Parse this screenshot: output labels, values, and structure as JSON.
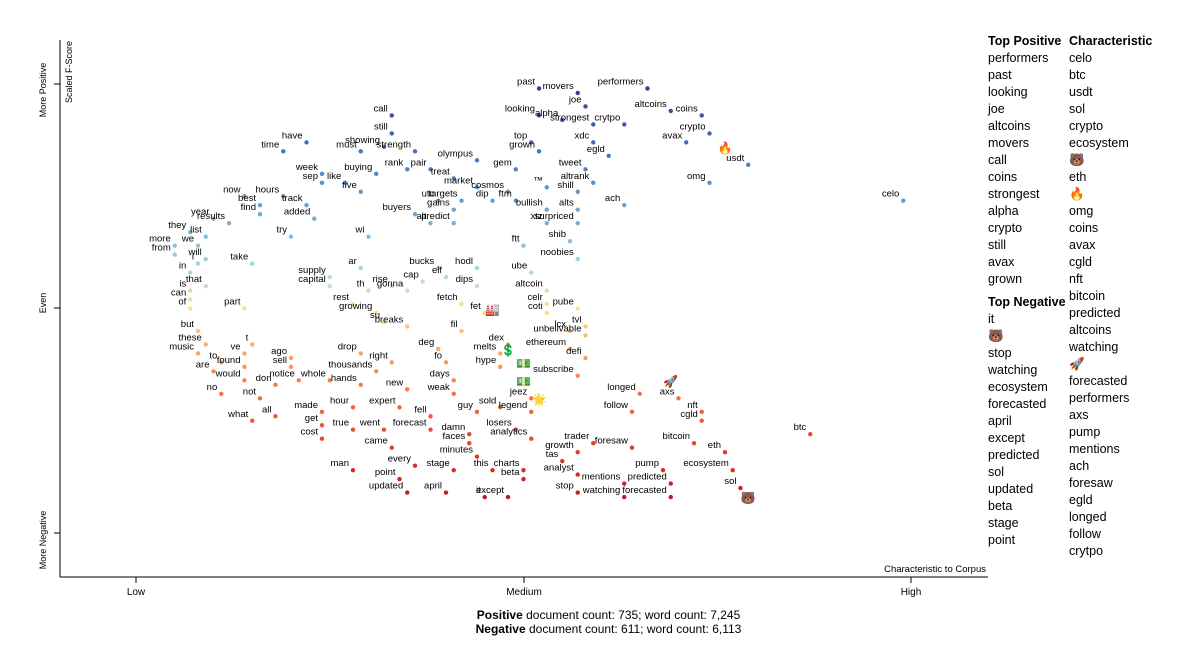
{
  "chart_data": {
    "type": "scatter",
    "title": "",
    "xlabel": "Characteristic to Corpus",
    "ylabel": "Scaled F-Score",
    "x_ticks": [
      "Low",
      "Medium",
      "High"
    ],
    "y_ticks": [
      "More Negative",
      "Even",
      "More Positive"
    ],
    "xlim": [
      0,
      1
    ],
    "ylim": [
      0,
      1
    ],
    "color_scale": {
      "positive": "#313695",
      "neutral": "#fee08b",
      "negative": "#a50026"
    },
    "labeled_points": [
      {
        "term": "past",
        "x": 0.52,
        "y": 0.99
      },
      {
        "term": "movers",
        "x": 0.57,
        "y": 0.98
      },
      {
        "term": "performers",
        "x": 0.66,
        "y": 0.99
      },
      {
        "term": "call",
        "x": 0.33,
        "y": 0.93
      },
      {
        "term": "joe",
        "x": 0.58,
        "y": 0.95
      },
      {
        "term": "looking",
        "x": 0.52,
        "y": 0.93
      },
      {
        "term": "alpha",
        "x": 0.55,
        "y": 0.92
      },
      {
        "term": "strongest",
        "x": 0.59,
        "y": 0.91
      },
      {
        "term": "altcoins",
        "x": 0.69,
        "y": 0.94
      },
      {
        "term": "coins",
        "x": 0.73,
        "y": 0.93
      },
      {
        "term": "crytpo",
        "x": 0.63,
        "y": 0.91
      },
      {
        "term": "still",
        "x": 0.33,
        "y": 0.89
      },
      {
        "term": "top",
        "x": 0.51,
        "y": 0.87
      },
      {
        "term": "xdc",
        "x": 0.59,
        "y": 0.87
      },
      {
        "term": "crypto",
        "x": 0.74,
        "y": 0.89
      },
      {
        "term": "avax",
        "x": 0.71,
        "y": 0.87
      },
      {
        "term": "have",
        "x": 0.22,
        "y": 0.87
      },
      {
        "term": "must",
        "x": 0.29,
        "y": 0.85
      },
      {
        "term": "showing",
        "x": 0.32,
        "y": 0.86
      },
      {
        "term": "strength",
        "x": 0.36,
        "y": 0.85
      },
      {
        "term": "time",
        "x": 0.19,
        "y": 0.85
      },
      {
        "term": "grown",
        "x": 0.52,
        "y": 0.85
      },
      {
        "term": "egld",
        "x": 0.61,
        "y": 0.84
      },
      {
        "term": "olympus",
        "x": 0.44,
        "y": 0.83
      },
      {
        "term": "rank",
        "x": 0.35,
        "y": 0.81
      },
      {
        "term": "pair",
        "x": 0.38,
        "y": 0.81
      },
      {
        "term": "gem",
        "x": 0.49,
        "y": 0.81
      },
      {
        "term": "tweet",
        "x": 0.58,
        "y": 0.81
      },
      {
        "term": "week",
        "x": 0.24,
        "y": 0.8
      },
      {
        "term": "buying",
        "x": 0.31,
        "y": 0.8
      },
      {
        "term": "treat",
        "x": 0.41,
        "y": 0.79
      },
      {
        "term": "altrank",
        "x": 0.59,
        "y": 0.78
      },
      {
        "term": "omg",
        "x": 0.74,
        "y": 0.78
      },
      {
        "term": "usdt",
        "x": 0.79,
        "y": 0.82
      },
      {
        "term": "sep",
        "x": 0.24,
        "y": 0.78
      },
      {
        "term": "like",
        "x": 0.27,
        "y": 0.78
      },
      {
        "term": "market",
        "x": 0.44,
        "y": 0.77
      },
      {
        "term": "five",
        "x": 0.29,
        "y": 0.76
      },
      {
        "term": "™",
        "x": 0.53,
        "y": 0.77
      },
      {
        "term": "shill",
        "x": 0.57,
        "y": 0.76
      },
      {
        "term": "cosmos",
        "x": 0.48,
        "y": 0.76
      },
      {
        "term": "now",
        "x": 0.14,
        "y": 0.75
      },
      {
        "term": "hours",
        "x": 0.19,
        "y": 0.75
      },
      {
        "term": "utc",
        "x": 0.39,
        "y": 0.74
      },
      {
        "term": "targets",
        "x": 0.42,
        "y": 0.74
      },
      {
        "term": "dip",
        "x": 0.46,
        "y": 0.74
      },
      {
        "term": "ftm",
        "x": 0.49,
        "y": 0.74
      },
      {
        "term": "ach",
        "x": 0.63,
        "y": 0.73
      },
      {
        "term": "best",
        "x": 0.16,
        "y": 0.73
      },
      {
        "term": "track",
        "x": 0.22,
        "y": 0.73
      },
      {
        "term": "gains",
        "x": 0.41,
        "y": 0.72
      },
      {
        "term": "bullish",
        "x": 0.53,
        "y": 0.72
      },
      {
        "term": "alts",
        "x": 0.57,
        "y": 0.72
      },
      {
        "term": "find",
        "x": 0.16,
        "y": 0.71
      },
      {
        "term": "year",
        "x": 0.1,
        "y": 0.7
      },
      {
        "term": "results",
        "x": 0.12,
        "y": 0.69
      },
      {
        "term": "added",
        "x": 0.23,
        "y": 0.7
      },
      {
        "term": "buyers",
        "x": 0.36,
        "y": 0.71
      },
      {
        "term": "predict",
        "x": 0.41,
        "y": 0.69
      },
      {
        "term": "xtz",
        "x": 0.53,
        "y": 0.69
      },
      {
        "term": "surpriced",
        "x": 0.57,
        "y": 0.69
      },
      {
        "term": "alt",
        "x": 0.38,
        "y": 0.69
      },
      {
        "term": "they",
        "x": 0.07,
        "y": 0.67
      },
      {
        "term": "list",
        "x": 0.09,
        "y": 0.66
      },
      {
        "term": "try",
        "x": 0.2,
        "y": 0.66
      },
      {
        "term": "wi",
        "x": 0.3,
        "y": 0.66
      },
      {
        "term": "shib",
        "x": 0.56,
        "y": 0.65
      },
      {
        "term": "more",
        "x": 0.05,
        "y": 0.64
      },
      {
        "term": "we",
        "x": 0.08,
        "y": 0.64
      },
      {
        "term": "ftt",
        "x": 0.5,
        "y": 0.64
      },
      {
        "term": "from",
        "x": 0.05,
        "y": 0.62
      },
      {
        "term": "will",
        "x": 0.09,
        "y": 0.61
      },
      {
        "term": "noobies",
        "x": 0.57,
        "y": 0.61
      },
      {
        "term": "take",
        "x": 0.15,
        "y": 0.6
      },
      {
        "term": "i",
        "x": 0.08,
        "y": 0.6
      },
      {
        "term": "ar",
        "x": 0.29,
        "y": 0.59
      },
      {
        "term": "bucks",
        "x": 0.39,
        "y": 0.59
      },
      {
        "term": "hodl",
        "x": 0.44,
        "y": 0.59
      },
      {
        "term": "ube",
        "x": 0.51,
        "y": 0.58
      },
      {
        "term": "in",
        "x": 0.07,
        "y": 0.58
      },
      {
        "term": "elf",
        "x": 0.4,
        "y": 0.57
      },
      {
        "term": "supply",
        "x": 0.25,
        "y": 0.57
      },
      {
        "term": "that",
        "x": 0.09,
        "y": 0.55
      },
      {
        "term": "cap",
        "x": 0.37,
        "y": 0.56
      },
      {
        "term": "dips",
        "x": 0.44,
        "y": 0.55
      },
      {
        "term": "capital",
        "x": 0.25,
        "y": 0.55
      },
      {
        "term": "rise",
        "x": 0.33,
        "y": 0.55
      },
      {
        "term": "is",
        "x": 0.07,
        "y": 0.54
      },
      {
        "term": "gonna",
        "x": 0.35,
        "y": 0.54
      },
      {
        "term": "altcoin",
        "x": 0.53,
        "y": 0.54
      },
      {
        "term": "th",
        "x": 0.3,
        "y": 0.54
      },
      {
        "term": "can",
        "x": 0.07,
        "y": 0.52
      },
      {
        "term": "rest",
        "x": 0.28,
        "y": 0.51
      },
      {
        "term": "celr",
        "x": 0.53,
        "y": 0.51
      },
      {
        "term": "fetch",
        "x": 0.42,
        "y": 0.51
      },
      {
        "term": "of",
        "x": 0.07,
        "y": 0.5
      },
      {
        "term": "part",
        "x": 0.14,
        "y": 0.5
      },
      {
        "term": "growing",
        "x": 0.31,
        "y": 0.49
      },
      {
        "term": "fet",
        "x": 0.45,
        "y": 0.49
      },
      {
        "term": "coti",
        "x": 0.53,
        "y": 0.49
      },
      {
        "term": "pube",
        "x": 0.57,
        "y": 0.5
      },
      {
        "term": "su",
        "x": 0.32,
        "y": 0.47
      },
      {
        "term": "tvl",
        "x": 0.58,
        "y": 0.46
      },
      {
        "term": "breaks",
        "x": 0.35,
        "y": 0.46
      },
      {
        "term": "but",
        "x": 0.08,
        "y": 0.45
      },
      {
        "term": "lcx",
        "x": 0.56,
        "y": 0.45
      },
      {
        "term": "fil",
        "x": 0.42,
        "y": 0.45
      },
      {
        "term": "unbelivable",
        "x": 0.58,
        "y": 0.44
      },
      {
        "term": "these",
        "x": 0.09,
        "y": 0.42
      },
      {
        "term": "t",
        "x": 0.15,
        "y": 0.42
      },
      {
        "term": "dex",
        "x": 0.48,
        "y": 0.42
      },
      {
        "term": "ethereum",
        "x": 0.56,
        "y": 0.41
      },
      {
        "term": "deg",
        "x": 0.39,
        "y": 0.41
      },
      {
        "term": "music",
        "x": 0.08,
        "y": 0.4
      },
      {
        "term": "ve",
        "x": 0.14,
        "y": 0.4
      },
      {
        "term": "drop",
        "x": 0.29,
        "y": 0.4
      },
      {
        "term": "melts",
        "x": 0.47,
        "y": 0.4
      },
      {
        "term": "defi",
        "x": 0.58,
        "y": 0.39
      },
      {
        "term": "ago",
        "x": 0.2,
        "y": 0.39
      },
      {
        "term": "to",
        "x": 0.11,
        "y": 0.38
      },
      {
        "term": "found",
        "x": 0.14,
        "y": 0.37
      },
      {
        "term": "right",
        "x": 0.33,
        "y": 0.38
      },
      {
        "term": "fo",
        "x": 0.4,
        "y": 0.38
      },
      {
        "term": "sell",
        "x": 0.2,
        "y": 0.37
      },
      {
        "term": "are",
        "x": 0.1,
        "y": 0.36
      },
      {
        "term": "thousands",
        "x": 0.31,
        "y": 0.36
      },
      {
        "term": "hype",
        "x": 0.47,
        "y": 0.37
      },
      {
        "term": "subscribe",
        "x": 0.57,
        "y": 0.35
      },
      {
        "term": "would",
        "x": 0.14,
        "y": 0.34
      },
      {
        "term": "notice",
        "x": 0.21,
        "y": 0.34
      },
      {
        "term": "whole",
        "x": 0.25,
        "y": 0.34
      },
      {
        "term": "days",
        "x": 0.41,
        "y": 0.34
      },
      {
        "term": "don",
        "x": 0.18,
        "y": 0.33
      },
      {
        "term": "hands",
        "x": 0.29,
        "y": 0.33
      },
      {
        "term": "new",
        "x": 0.35,
        "y": 0.32
      },
      {
        "term": "weak",
        "x": 0.41,
        "y": 0.31
      },
      {
        "term": "longed",
        "x": 0.65,
        "y": 0.31
      },
      {
        "term": "axs",
        "x": 0.7,
        "y": 0.3
      },
      {
        "term": "no",
        "x": 0.11,
        "y": 0.31
      },
      {
        "term": "not",
        "x": 0.16,
        "y": 0.3
      },
      {
        "term": "jeez",
        "x": 0.51,
        "y": 0.3
      },
      {
        "term": "hour",
        "x": 0.28,
        "y": 0.28
      },
      {
        "term": "expert",
        "x": 0.34,
        "y": 0.28
      },
      {
        "term": "sold",
        "x": 0.47,
        "y": 0.28
      },
      {
        "term": "legend",
        "x": 0.51,
        "y": 0.27
      },
      {
        "term": "follow",
        "x": 0.64,
        "y": 0.27
      },
      {
        "term": "nft",
        "x": 0.73,
        "y": 0.27
      },
      {
        "term": "made",
        "x": 0.24,
        "y": 0.27
      },
      {
        "term": "fell",
        "x": 0.38,
        "y": 0.26
      },
      {
        "term": "guy",
        "x": 0.44,
        "y": 0.27
      },
      {
        "term": "all",
        "x": 0.18,
        "y": 0.26
      },
      {
        "term": "what",
        "x": 0.15,
        "y": 0.25
      },
      {
        "term": "cgld",
        "x": 0.73,
        "y": 0.25
      },
      {
        "term": "get",
        "x": 0.24,
        "y": 0.24
      },
      {
        "term": "forecast",
        "x": 0.38,
        "y": 0.23
      },
      {
        "term": "losers",
        "x": 0.49,
        "y": 0.23
      },
      {
        "term": "true",
        "x": 0.28,
        "y": 0.23
      },
      {
        "term": "went",
        "x": 0.32,
        "y": 0.23
      },
      {
        "term": "damn",
        "x": 0.43,
        "y": 0.22
      },
      {
        "term": "cost",
        "x": 0.24,
        "y": 0.21
      },
      {
        "term": "analytics",
        "x": 0.51,
        "y": 0.21
      },
      {
        "term": "faces",
        "x": 0.43,
        "y": 0.2
      },
      {
        "term": "trader",
        "x": 0.59,
        "y": 0.2
      },
      {
        "term": "bitcoin",
        "x": 0.72,
        "y": 0.2
      },
      {
        "term": "btc",
        "x": 0.87,
        "y": 0.22
      },
      {
        "term": "came",
        "x": 0.33,
        "y": 0.19
      },
      {
        "term": "growth",
        "x": 0.57,
        "y": 0.18
      },
      {
        "term": "foresaw",
        "x": 0.64,
        "y": 0.19
      },
      {
        "term": "eth",
        "x": 0.76,
        "y": 0.18
      },
      {
        "term": "minutes",
        "x": 0.44,
        "y": 0.17
      },
      {
        "term": "tas",
        "x": 0.55,
        "y": 0.16
      },
      {
        "term": "every",
        "x": 0.36,
        "y": 0.15
      },
      {
        "term": "man",
        "x": 0.28,
        "y": 0.14
      },
      {
        "term": "stage",
        "x": 0.41,
        "y": 0.14
      },
      {
        "term": "this",
        "x": 0.46,
        "y": 0.14
      },
      {
        "term": "charts",
        "x": 0.5,
        "y": 0.14
      },
      {
        "term": "analyst",
        "x": 0.57,
        "y": 0.13
      },
      {
        "term": "pump",
        "x": 0.68,
        "y": 0.14
      },
      {
        "term": "ecosystem",
        "x": 0.77,
        "y": 0.14
      },
      {
        "term": "point",
        "x": 0.34,
        "y": 0.12
      },
      {
        "term": "beta",
        "x": 0.5,
        "y": 0.12
      },
      {
        "term": "mentions",
        "x": 0.63,
        "y": 0.11
      },
      {
        "term": "predicted",
        "x": 0.69,
        "y": 0.11
      },
      {
        "term": "sol",
        "x": 0.78,
        "y": 0.1
      },
      {
        "term": "updated",
        "x": 0.35,
        "y": 0.09
      },
      {
        "term": "april",
        "x": 0.4,
        "y": 0.09
      },
      {
        "term": "it",
        "x": 0.45,
        "y": 0.08
      },
      {
        "term": "except",
        "x": 0.48,
        "y": 0.08
      },
      {
        "term": "stop",
        "x": 0.57,
        "y": 0.09
      },
      {
        "term": "watching",
        "x": 0.63,
        "y": 0.08
      },
      {
        "term": "forecasted",
        "x": 0.69,
        "y": 0.08
      },
      {
        "term": "celo",
        "x": 0.99,
        "y": 0.74
      }
    ],
    "emoji_points": [
      {
        "glyph": "🔥",
        "x": 0.76,
        "y": 0.86
      },
      {
        "glyph": "🐻",
        "x": 0.79,
        "y": 0.08
      },
      {
        "glyph": "🚀",
        "x": 0.69,
        "y": 0.34
      },
      {
        "glyph": "💲",
        "x": 0.48,
        "y": 0.41
      },
      {
        "glyph": "💵",
        "x": 0.5,
        "y": 0.38
      },
      {
        "glyph": "💵",
        "x": 0.5,
        "y": 0.34
      },
      {
        "glyph": "🏭",
        "x": 0.46,
        "y": 0.5
      },
      {
        "glyph": "🌟",
        "x": 0.52,
        "y": 0.3
      }
    ]
  },
  "sidebar": {
    "top_positive_title": "Top Positive",
    "top_positive": [
      "performers",
      "past",
      "looking",
      "joe",
      "altcoins",
      "movers",
      "call",
      "coins",
      "strongest",
      "alpha",
      "crypto",
      "still",
      "avax",
      "grown"
    ],
    "top_negative_title": "Top Negative",
    "top_negative": [
      "it",
      "🐻",
      "stop",
      "watching",
      "ecosystem",
      "forecasted",
      "april",
      "except",
      "predicted",
      "sol",
      "updated",
      "beta",
      "stage",
      "point"
    ],
    "characteristic_title": "Characteristic",
    "characteristic": [
      "celo",
      "btc",
      "usdt",
      "sol",
      "crypto",
      "ecosystem",
      "🐻",
      "eth",
      "🔥",
      "omg",
      "coins",
      "avax",
      "cgld",
      "nft",
      "bitcoin",
      "predicted",
      "altcoins",
      "watching",
      "🚀",
      "forecasted",
      "performers",
      "axs",
      "pump",
      "mentions",
      "ach",
      "foresaw",
      "egld",
      "longed",
      "follow",
      "crytpo"
    ]
  },
  "footer": {
    "positive_label": "Positive",
    "positive_text": " document count: 735; word count: 7,245",
    "negative_label": "Negative",
    "negative_text": " document count: 611; word count: 6,113"
  }
}
